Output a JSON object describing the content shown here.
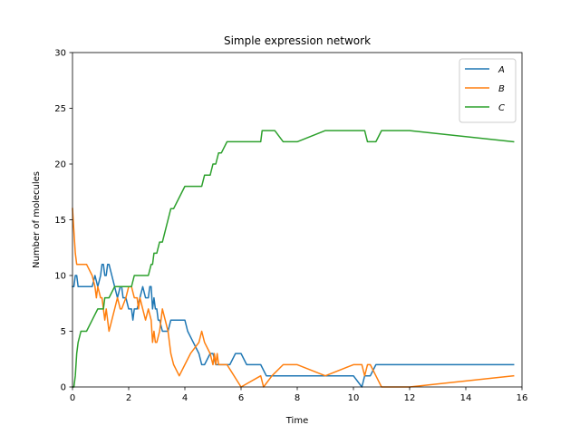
{
  "chart_data": {
    "type": "line",
    "title": "Simple expression network",
    "xlabel": "Time",
    "ylabel": "Number of molecules",
    "xlim": [
      0,
      16
    ],
    "ylim": [
      0,
      30
    ],
    "xticks": [
      0,
      2,
      4,
      6,
      8,
      10,
      12,
      14,
      16
    ],
    "yticks": [
      0,
      5,
      10,
      15,
      20,
      25,
      30
    ],
    "grid": false,
    "legend_position": "top-right",
    "series": [
      {
        "name": "A",
        "color": "#1f77b4",
        "x": [
          0.0,
          0.05,
          0.1,
          0.15,
          0.2,
          0.3,
          0.5,
          0.7,
          0.8,
          0.9,
          1.0,
          1.05,
          1.1,
          1.15,
          1.2,
          1.25,
          1.3,
          1.4,
          1.5,
          1.6,
          1.7,
          1.75,
          1.8,
          1.9,
          2.0,
          2.1,
          2.15,
          2.2,
          2.3,
          2.4,
          2.5,
          2.6,
          2.7,
          2.75,
          2.8,
          2.85,
          2.9,
          2.95,
          3.0,
          3.05,
          3.1,
          3.2,
          3.3,
          3.4,
          3.5,
          3.6,
          3.8,
          4.0,
          4.1,
          4.3,
          4.5,
          4.6,
          4.7,
          4.9,
          5.0,
          5.1,
          5.2,
          5.3,
          5.4,
          5.5,
          5.6,
          5.8,
          6.0,
          6.2,
          6.7,
          6.9,
          7.1,
          7.3,
          8.0,
          9.0,
          10.0,
          10.3,
          10.4,
          10.6,
          10.8,
          11.0,
          12.0,
          15.7
        ],
        "values": [
          9,
          9,
          10,
          10,
          9,
          9,
          9,
          9,
          10,
          9,
          10,
          11,
          11,
          10,
          10,
          11,
          11,
          10,
          9,
          8,
          9,
          9,
          8,
          8,
          7,
          7,
          6,
          7,
          7,
          8,
          9,
          8,
          8,
          9,
          9,
          7,
          8,
          7,
          7,
          6,
          6,
          5,
          5,
          5,
          6,
          6,
          6,
          6,
          5,
          4,
          3,
          2,
          2,
          3,
          3,
          2,
          2,
          2,
          2,
          2,
          2,
          3,
          3,
          2,
          2,
          1,
          1,
          1,
          1,
          1,
          1,
          0,
          1,
          1,
          2,
          2,
          2,
          2
        ]
      },
      {
        "name": "B",
        "color": "#ff7f0e",
        "x": [
          0.0,
          0.05,
          0.1,
          0.15,
          0.2,
          0.3,
          0.5,
          0.7,
          0.8,
          0.85,
          0.9,
          1.0,
          1.05,
          1.1,
          1.15,
          1.2,
          1.3,
          1.4,
          1.5,
          1.6,
          1.7,
          1.75,
          1.9,
          2.0,
          2.1,
          2.2,
          2.3,
          2.35,
          2.4,
          2.5,
          2.6,
          2.7,
          2.8,
          2.85,
          2.9,
          2.95,
          3.0,
          3.1,
          3.2,
          3.3,
          3.4,
          3.5,
          3.6,
          3.8,
          4.0,
          4.2,
          4.5,
          4.6,
          4.7,
          4.9,
          5.0,
          5.05,
          5.1,
          5.15,
          5.2,
          5.3,
          5.5,
          6.0,
          6.7,
          6.8,
          7.1,
          7.5,
          8.0,
          9.0,
          10.0,
          10.3,
          10.4,
          10.5,
          10.6,
          10.8,
          11.0,
          12.0,
          15.7
        ],
        "values": [
          16,
          14,
          12,
          11,
          11,
          11,
          11,
          10,
          9,
          8,
          9,
          8,
          8,
          7,
          6,
          7,
          5,
          6,
          7,
          8,
          7,
          7,
          8,
          9,
          9,
          8,
          8,
          7,
          8,
          7,
          6,
          7,
          6,
          4,
          5,
          4,
          4,
          5,
          7,
          6,
          5,
          3,
          2,
          1,
          2,
          3,
          4,
          5,
          4,
          3,
          2,
          3,
          2,
          3,
          2,
          2,
          2,
          0,
          1,
          0,
          1,
          2,
          2,
          1,
          2,
          2,
          1,
          2,
          2,
          1,
          0,
          0,
          1
        ]
      },
      {
        "name": "C",
        "color": "#2ca02c",
        "x": [
          0.0,
          0.05,
          0.1,
          0.15,
          0.2,
          0.3,
          0.5,
          0.7,
          0.9,
          1.0,
          1.1,
          1.15,
          1.2,
          1.3,
          1.5,
          1.7,
          1.8,
          2.0,
          2.1,
          2.2,
          2.3,
          2.5,
          2.7,
          2.8,
          2.85,
          2.9,
          3.0,
          3.1,
          3.2,
          3.3,
          3.4,
          3.5,
          3.6,
          3.8,
          4.0,
          4.2,
          4.4,
          4.6,
          4.7,
          4.8,
          4.9,
          5.0,
          5.1,
          5.2,
          5.3,
          5.5,
          5.7,
          5.9,
          6.1,
          6.4,
          6.7,
          6.75,
          7.0,
          7.2,
          7.5,
          8.0,
          9.0,
          10.0,
          10.4,
          10.5,
          10.8,
          11.0,
          12.0,
          15.7
        ],
        "values": [
          0,
          0,
          1,
          3,
          4,
          5,
          5,
          6,
          7,
          7,
          7,
          8,
          8,
          8,
          9,
          9,
          9,
          9,
          9,
          10,
          10,
          10,
          10,
          11,
          11,
          12,
          12,
          13,
          13,
          14,
          15,
          16,
          16,
          17,
          18,
          18,
          18,
          18,
          19,
          19,
          19,
          20,
          20,
          21,
          21,
          22,
          22,
          22,
          22,
          22,
          22,
          23,
          23,
          23,
          22,
          22,
          23,
          23,
          23,
          22,
          22,
          23,
          23,
          22
        ]
      }
    ]
  }
}
